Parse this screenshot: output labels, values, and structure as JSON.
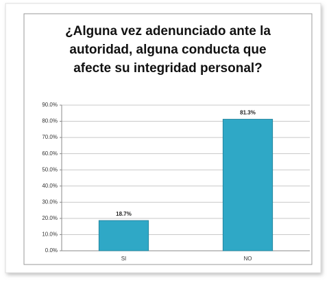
{
  "chart_data": {
    "type": "bar",
    "title": [
      "¿Alguna vez adenunciado ante la",
      "autoridad,  alguna conducta que",
      "afecte su integridad personal?"
    ],
    "categories": [
      "SI",
      "NO"
    ],
    "values": [
      18.7,
      81.3
    ],
    "value_labels": [
      "18.7%",
      "81.3%"
    ],
    "color": "#2fa8c6",
    "ylim": [
      0,
      90
    ],
    "yticks": [
      {
        "value": 0,
        "label": "0.0%"
      },
      {
        "value": 10,
        "label": "10.0%"
      },
      {
        "value": 20,
        "label": "20.0%"
      },
      {
        "value": 30,
        "label": "30.0%"
      },
      {
        "value": 40,
        "label": "40.0%"
      },
      {
        "value": 50,
        "label": "50.0%"
      },
      {
        "value": 60,
        "label": "60.0%"
      },
      {
        "value": 70,
        "label": "70.0%"
      },
      {
        "value": 80,
        "label": "80.0%"
      },
      {
        "value": 90,
        "label": "90.0%"
      }
    ],
    "grid": true
  }
}
